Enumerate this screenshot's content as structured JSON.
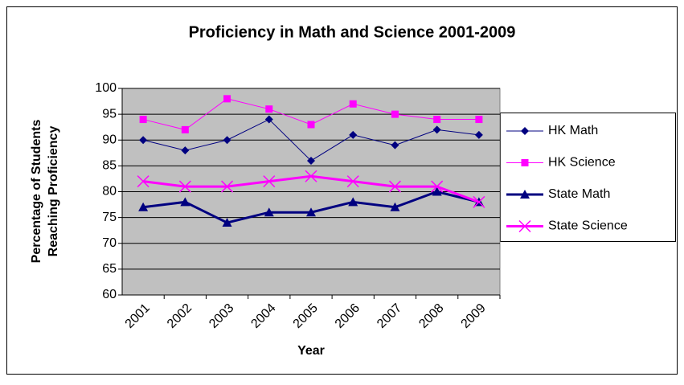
{
  "chart_data": {
    "type": "line",
    "title": "Proficiency in Math and Science 2001-2009",
    "xlabel": "Year",
    "ylabel": [
      "Percentage of Students",
      "Reaching Proficiency"
    ],
    "categories": [
      "2001",
      "2002",
      "2003",
      "2004",
      "2005",
      "2006",
      "2007",
      "2008",
      "2009"
    ],
    "series": [
      {
        "name": "HK Math",
        "color": "#000080",
        "marker": "diamond",
        "linewidth": 1,
        "values": [
          90,
          88,
          90,
          94,
          86,
          91,
          89,
          92,
          91
        ]
      },
      {
        "name": "HK Science",
        "color": "#FF00FF",
        "marker": "square",
        "linewidth": 1,
        "values": [
          94,
          92,
          98,
          96,
          93,
          97,
          95,
          94,
          94
        ]
      },
      {
        "name": "State Math",
        "color": "#000080",
        "marker": "triangle",
        "linewidth": 3,
        "values": [
          77,
          78,
          74,
          76,
          76,
          78,
          77,
          80,
          78
        ]
      },
      {
        "name": "State Science",
        "color": "#FF00FF",
        "marker": "x",
        "linewidth": 3,
        "values": [
          82,
          81,
          81,
          82,
          83,
          82,
          81,
          81,
          78
        ]
      }
    ],
    "ylim": [
      60,
      100
    ],
    "yticks": [
      60,
      65,
      70,
      75,
      80,
      85,
      90,
      95,
      100
    ],
    "grid": true,
    "plot_background": "#C0C0C0",
    "legend": "right"
  }
}
